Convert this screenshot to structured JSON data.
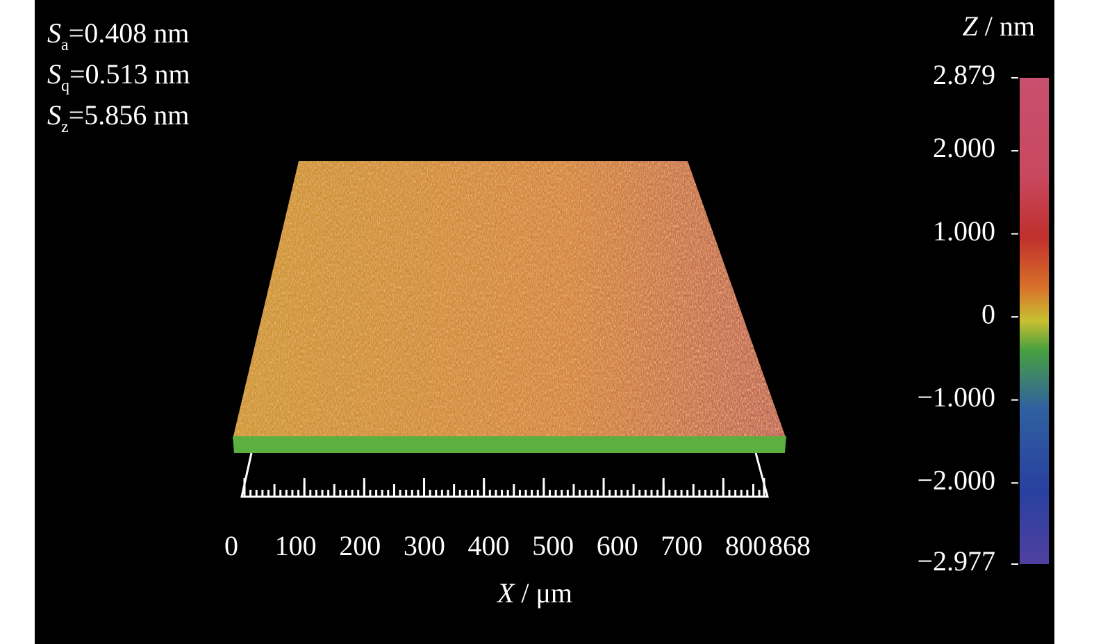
{
  "parameters": [
    {
      "symbol": "S",
      "subscript": "a",
      "text": "=0.408 nm"
    },
    {
      "symbol": "S",
      "subscript": "q",
      "text": "=0.513 nm"
    },
    {
      "symbol": "S",
      "subscript": "z",
      "text": "=5.856 nm"
    }
  ],
  "colorbar": {
    "label_symbol": "Z",
    "label_unit": " / nm",
    "ticks": [
      2.879,
      {
        "value": 2,
        "label": "2.000"
      },
      {
        "value": 1,
        "label": "1.000"
      },
      0,
      {
        "value": -1,
        "label": "−1.000"
      },
      {
        "value": -2,
        "label": "−2.000"
      },
      {
        "value": -2.977,
        "label": "−2.977"
      }
    ]
  },
  "x_axis": {
    "label_symbol": "X",
    "label_unit": " / μm",
    "ticks": [
      0,
      100,
      200,
      300,
      400,
      500,
      600,
      700,
      800,
      868
    ]
  }
}
